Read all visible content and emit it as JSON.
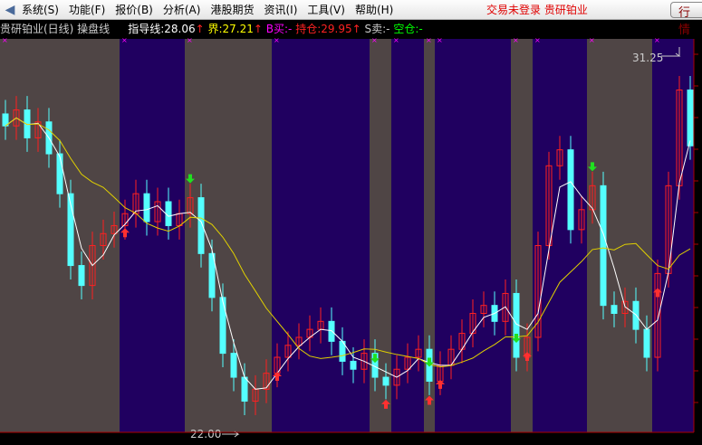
{
  "menu": {
    "items": [
      "系统(S)",
      "功能(F)",
      "报价(B)",
      "分析(A)",
      "港股期货",
      "资讯(I)",
      "工具(V)",
      "帮助(H)"
    ],
    "status": "交易未登录  贵研铂业",
    "quote_button": "行 情"
  },
  "info": {
    "title": "贵研铂业(日线) 操盘线",
    "guide": "指导线:28.06",
    "guide_arrow": "↑",
    "bound": "界:27.21",
    "bound_arrow": "↑",
    "buy": "B买:-",
    "hold": "持仓:29.95",
    "hold_arrow": "↑",
    "sell": "S卖:-",
    "empty": "空仓:-"
  },
  "colors": {
    "bull": "#ff2020",
    "bear": "#54ffff",
    "gray_band": "#4f4545",
    "purple_band": "#200060",
    "ma_short": "#ffffff",
    "ma_long": "#e0d000",
    "marker": "#ff00ff"
  },
  "chart_data": {
    "type": "candlestick",
    "price_range": [
      22.0,
      31.25
    ],
    "high_label": "31.25",
    "low_label": "22.00",
    "close": [
      29.5,
      29.9,
      29.2,
      29.6,
      28.8,
      27.8,
      26.0,
      25.5,
      26.5,
      26.8,
      27.0,
      27.3,
      27.8,
      27.1,
      27.6,
      27.0,
      27.3,
      27.7,
      26.3,
      25.2,
      23.8,
      23.2,
      22.6,
      22.9,
      23.3,
      23.7,
      24.0,
      24.2,
      24.4,
      24.6,
      24.1,
      23.6,
      23.4,
      23.8,
      23.2,
      23.0,
      23.4,
      23.7,
      23.9,
      23.1,
      23.5,
      23.9,
      24.3,
      24.8,
      25.0,
      24.6,
      25.3,
      23.7,
      24.2,
      26.5,
      28.5,
      28.9,
      26.9,
      27.4,
      28.0,
      25.0,
      24.8,
      25.1,
      24.4,
      23.7,
      25.8,
      28.0,
      30.4,
      29.0
    ],
    "bands": [
      [
        "gray",
        0,
        11
      ],
      [
        "purple",
        11,
        17
      ],
      [
        "gray",
        17,
        25
      ],
      [
        "purple",
        25,
        34
      ],
      [
        "gray",
        34,
        36
      ],
      [
        "purple",
        36,
        39
      ],
      [
        "gray",
        39,
        40
      ],
      [
        "purple",
        40,
        47
      ],
      [
        "gray",
        47,
        49
      ],
      [
        "purple",
        49,
        54
      ],
      [
        "gray",
        54,
        60
      ],
      [
        "purple",
        60,
        64
      ]
    ],
    "buy_signals": [
      11,
      25,
      35,
      39,
      40,
      48,
      60
    ],
    "sell_signals": [
      17,
      34,
      39,
      47,
      54
    ]
  }
}
